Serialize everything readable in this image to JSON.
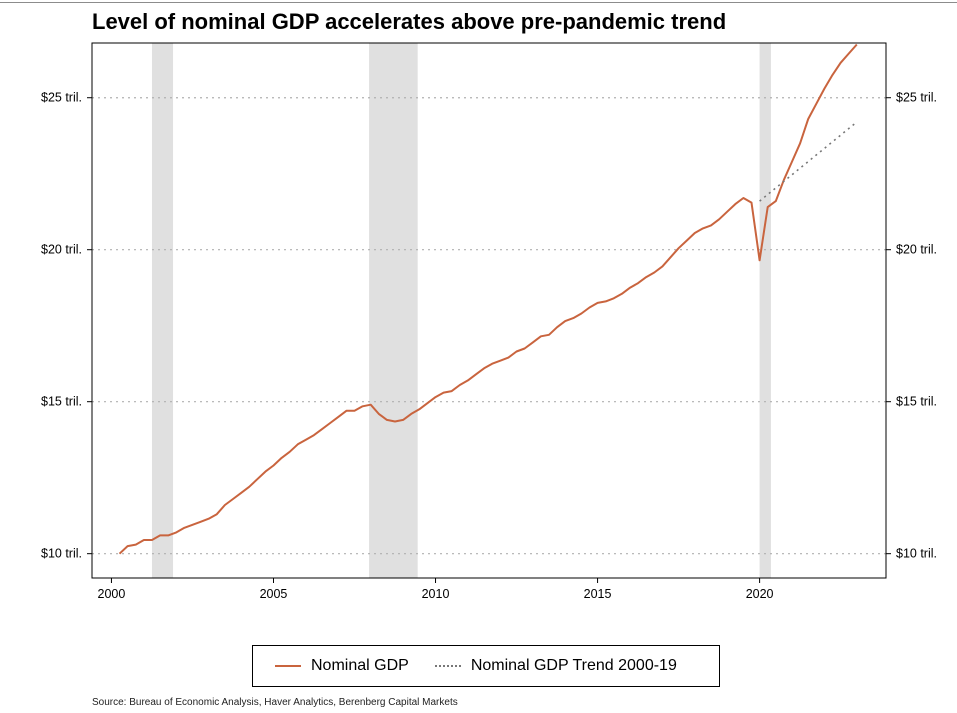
{
  "chart_data": {
    "type": "line",
    "title": "Level of nominal GDP accelerates above pre-pandemic trend",
    "xlabel": "",
    "ylabel": "",
    "xlim": [
      1999.4,
      2023.9
    ],
    "ylim": [
      9.2,
      26.8
    ],
    "x_ticks": [
      2000,
      2005,
      2010,
      2015,
      2020
    ],
    "x_tick_labels": [
      "2000",
      "2005",
      "2010",
      "2015",
      "2020"
    ],
    "y_ticks": [
      10,
      15,
      20,
      25
    ],
    "y_tick_labels": [
      "$10 tril.",
      "$15 tril.",
      "$20 tril.",
      "$25 tril."
    ],
    "grid": "horizontal dotted",
    "recessions": [
      {
        "start": 2001.25,
        "end": 2001.9
      },
      {
        "start": 2007.95,
        "end": 2009.45
      },
      {
        "start": 2020.0,
        "end": 2020.35
      }
    ],
    "colors": {
      "nominal": "#C9643E",
      "trend": "#777777",
      "recession": "#e0e0e0"
    },
    "series": [
      {
        "name": "Nominal GDP",
        "style": "solid",
        "x": [
          2000.25,
          2000.5,
          2000.75,
          2001.0,
          2001.25,
          2001.5,
          2001.75,
          2002.0,
          2002.25,
          2002.5,
          2002.75,
          2003.0,
          2003.25,
          2003.5,
          2003.75,
          2004.0,
          2004.25,
          2004.5,
          2004.75,
          2005.0,
          2005.25,
          2005.5,
          2005.75,
          2006.0,
          2006.25,
          2006.5,
          2006.75,
          2007.0,
          2007.25,
          2007.5,
          2007.75,
          2008.0,
          2008.25,
          2008.5,
          2008.75,
          2009.0,
          2009.25,
          2009.5,
          2009.75,
          2010.0,
          2010.25,
          2010.5,
          2010.75,
          2011.0,
          2011.25,
          2011.5,
          2011.75,
          2012.0,
          2012.25,
          2012.5,
          2012.75,
          2013.0,
          2013.25,
          2013.5,
          2013.75,
          2014.0,
          2014.25,
          2014.5,
          2014.75,
          2015.0,
          2015.25,
          2015.5,
          2015.75,
          2016.0,
          2016.25,
          2016.5,
          2016.75,
          2017.0,
          2017.25,
          2017.5,
          2017.75,
          2018.0,
          2018.25,
          2018.5,
          2018.75,
          2019.0,
          2019.25,
          2019.5,
          2019.75,
          2020.0,
          2020.25,
          2020.5,
          2020.75,
          2021.0,
          2021.25,
          2021.5,
          2021.75,
          2022.0,
          2022.25,
          2022.5,
          2022.75,
          2023.0
        ],
        "y": [
          10.0,
          10.25,
          10.3,
          10.45,
          10.45,
          10.6,
          10.6,
          10.7,
          10.85,
          10.95,
          11.05,
          11.15,
          11.3,
          11.6,
          11.8,
          12.0,
          12.2,
          12.45,
          12.7,
          12.9,
          13.15,
          13.35,
          13.6,
          13.75,
          13.9,
          14.1,
          14.3,
          14.5,
          14.7,
          14.7,
          14.85,
          14.9,
          14.6,
          14.4,
          14.35,
          14.4,
          14.6,
          14.75,
          14.95,
          15.15,
          15.3,
          15.35,
          15.55,
          15.7,
          15.9,
          16.1,
          16.25,
          16.35,
          16.45,
          16.65,
          16.75,
          16.95,
          17.15,
          17.2,
          17.45,
          17.65,
          17.75,
          17.9,
          18.1,
          18.25,
          18.3,
          18.4,
          18.55,
          18.75,
          18.9,
          19.1,
          19.25,
          19.45,
          19.75,
          20.05,
          20.3,
          20.55,
          20.7,
          20.8,
          21.0,
          21.25,
          21.5,
          21.7,
          21.55,
          19.65,
          21.4,
          21.6,
          22.3,
          22.9,
          23.5,
          24.3,
          24.8,
          25.3,
          25.75,
          26.15,
          26.45,
          26.75
        ]
      },
      {
        "name": "Nominal GDP Trend 2000-19",
        "style": "dotted",
        "x": [
          2020.0,
          2023.0
        ],
        "y": [
          21.6,
          24.2
        ]
      }
    ]
  },
  "legend": {
    "item1": "Nominal GDP",
    "item2": "Nominal GDP Trend 2000-19"
  },
  "source": "Source: Bureau of Economic Analysis, Haver Analytics, Berenberg Capital Markets"
}
